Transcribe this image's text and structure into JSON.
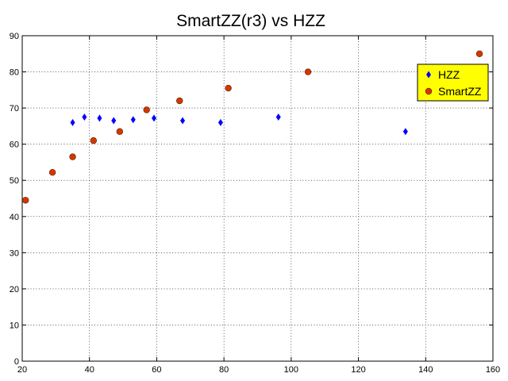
{
  "chart_data": {
    "type": "scatter",
    "title": "SmartZZ(r3) vs HZZ",
    "xlabel": "",
    "ylabel": "",
    "xlim": [
      20,
      160
    ],
    "ylim": [
      0,
      90
    ],
    "xticks": [
      20,
      40,
      60,
      80,
      100,
      120,
      140,
      160
    ],
    "yticks": [
      0,
      10,
      20,
      30,
      40,
      50,
      60,
      70,
      80,
      90
    ],
    "grid": true,
    "legend_position": "top-right",
    "series": [
      {
        "name": "HZZ",
        "marker": "diamond",
        "color": "#0000ff",
        "points": [
          [
            35.0,
            66.0
          ],
          [
            38.5,
            67.5
          ],
          [
            43.0,
            67.2
          ],
          [
            47.2,
            66.5
          ],
          [
            53.0,
            66.8
          ],
          [
            59.2,
            67.2
          ],
          [
            67.7,
            66.5
          ],
          [
            79.0,
            66.0
          ],
          [
            96.2,
            67.5
          ],
          [
            134.0,
            63.5
          ]
        ]
      },
      {
        "name": "SmartZZ",
        "marker": "circle",
        "color": "#dd3300",
        "points": [
          [
            21.0,
            44.5
          ],
          [
            29.0,
            52.2
          ],
          [
            35.0,
            56.5
          ],
          [
            41.2,
            61.0
          ],
          [
            49.0,
            63.5
          ],
          [
            57.0,
            69.5
          ],
          [
            66.8,
            72.0
          ],
          [
            81.3,
            75.5
          ],
          [
            105.0,
            80.0
          ],
          [
            156.0,
            85.0
          ]
        ]
      }
    ]
  }
}
